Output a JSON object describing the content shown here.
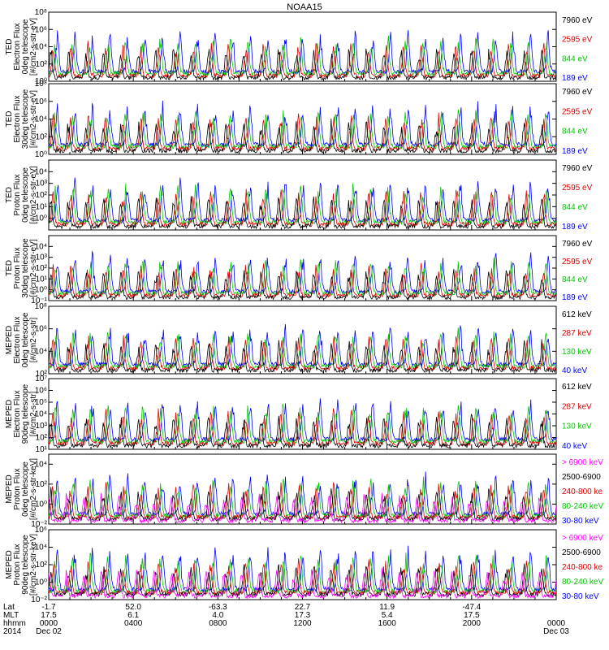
{
  "title": "NOAA15",
  "chart_data": [
    {
      "type": "line",
      "instrument": "TED",
      "ylabel": [
        "TED",
        "Electron Flux",
        "0deg telescope",
        "[#/cm2-s-str-eV]"
      ],
      "ytick_exponents": [
        0,
        2,
        4,
        6,
        8
      ],
      "ytick_labels": [
        "10⁰",
        "10²",
        "10⁴",
        "10⁶",
        "10⁸"
      ],
      "ylim": [
        1,
        100000000
      ],
      "yscale": "log",
      "series": [
        {
          "name": "7960 eV",
          "color": "#000000"
        },
        {
          "name": "2595 eV",
          "color": "#e00000"
        },
        {
          "name": "844 eV",
          "color": "#00c800"
        },
        {
          "name": "189 eV",
          "color": "#0000ff"
        }
      ]
    },
    {
      "type": "line",
      "instrument": "TED",
      "ylabel": [
        "TED",
        "Electron Flux",
        "30deg telescope",
        "[#/cm2-s-str-eV]"
      ],
      "ytick_exponents": [
        0,
        2,
        4,
        6,
        8
      ],
      "ytick_labels": [
        "10⁰",
        "10²",
        "10⁴",
        "10⁶",
        "10⁸"
      ],
      "ylim": [
        1,
        100000000
      ],
      "yscale": "log",
      "series": [
        {
          "name": "7960 eV",
          "color": "#000000"
        },
        {
          "name": "2595 eV",
          "color": "#e00000"
        },
        {
          "name": "844 eV",
          "color": "#00c800"
        },
        {
          "name": "189 eV",
          "color": "#0000ff"
        }
      ]
    },
    {
      "type": "line",
      "instrument": "TED",
      "ylabel": [
        "TED",
        "Proton Flux",
        "0deg telescope",
        "[#/cm2-s-str-eV]"
      ],
      "ytick_exponents": [
        0,
        1,
        2,
        3,
        4
      ],
      "ytick_labels": [
        "10⁰",
        "10¹",
        "10²",
        "10³",
        "10⁴"
      ],
      "ylim": [
        0.1,
        100000
      ],
      "yscale": "log",
      "series": [
        {
          "name": "7960 eV",
          "color": "#000000"
        },
        {
          "name": "2595 eV",
          "color": "#e00000"
        },
        {
          "name": "844 eV",
          "color": "#00c800"
        },
        {
          "name": "189 eV",
          "color": "#0000ff"
        }
      ]
    },
    {
      "type": "line",
      "instrument": "TED",
      "ylabel": [
        "TED",
        "Proton Flux",
        "30deg telescope",
        "[#/cm2-s-str-eV]"
      ],
      "ytick_exponents": [
        -1,
        0,
        1,
        2,
        3,
        4
      ],
      "ytick_labels": [
        "10⁻¹",
        "10⁰",
        "10¹",
        "10²",
        "10³",
        "10⁴"
      ],
      "ylim": [
        0.1,
        100000
      ],
      "yscale": "log",
      "series": [
        {
          "name": "7960 eV",
          "color": "#000000"
        },
        {
          "name": "2595 eV",
          "color": "#e00000"
        },
        {
          "name": "844 eV",
          "color": "#00c800"
        },
        {
          "name": "189 eV",
          "color": "#0000ff"
        }
      ]
    },
    {
      "type": "line",
      "instrument": "MEPED",
      "ylabel": [
        "MEPED",
        "Electron Flux",
        "0deg telescope",
        "[#/cm2-s-str]"
      ],
      "ytick_exponents": [
        2,
        4,
        6,
        8
      ],
      "ytick_labels": [
        "10²",
        "10⁴",
        "10⁶",
        "10⁸"
      ],
      "ylim": [
        100,
        100000000
      ],
      "yscale": "log",
      "series": [
        {
          "name": "612 keV",
          "color": "#000000"
        },
        {
          "name": "287 keV",
          "color": "#e00000"
        },
        {
          "name": "130 keV",
          "color": "#00c800"
        },
        {
          "name": "40 keV",
          "color": "#0000ff"
        }
      ]
    },
    {
      "type": "line",
      "instrument": "MEPED",
      "ylabel": [
        "MEPED",
        "Electron Flux",
        "90deg telescope",
        "[#/cm2-s-str]"
      ],
      "ytick_exponents": [
        1,
        2,
        3,
        4,
        5,
        6,
        7
      ],
      "ytick_labels": [
        "10¹",
        "10²",
        "10³",
        "10⁴",
        "10⁵",
        "10⁶",
        "10⁷"
      ],
      "ylim": [
        10,
        10000000
      ],
      "yscale": "log",
      "series": [
        {
          "name": "612 keV",
          "color": "#000000"
        },
        {
          "name": "287 keV",
          "color": "#e00000"
        },
        {
          "name": "130 keV",
          "color": "#00c800"
        },
        {
          "name": "40 keV",
          "color": "#0000ff"
        }
      ]
    },
    {
      "type": "line",
      "instrument": "MEPED",
      "ylabel": [
        "MEPED",
        "Proton Flux",
        "0deg telescope",
        "[#/cm2-s-str-keV]"
      ],
      "ytick_exponents": [
        -2,
        0,
        2,
        4
      ],
      "ytick_labels": [
        "10⁻²",
        "10⁰",
        "10²",
        "10⁴"
      ],
      "ylim": [
        0.01,
        100000
      ],
      "yscale": "log",
      "series": [
        {
          "name": "> 6900 keV",
          "color": "#ff00ff"
        },
        {
          "name": "2500-6900",
          "color": "#000000"
        },
        {
          "name": "240-800 ke",
          "color": "#e00000"
        },
        {
          "name": "80-240 keV",
          "color": "#00c800"
        },
        {
          "name": "30-80 keV",
          "color": "#0000ff"
        }
      ]
    },
    {
      "type": "line",
      "instrument": "MEPED",
      "ylabel": [
        "MEPED",
        "Proton Flux",
        "90deg telescope",
        "[#/cm2-s-str-keV]"
      ],
      "ytick_exponents": [
        -2,
        0,
        2,
        4,
        6
      ],
      "ytick_labels": [
        "10⁻²",
        "10⁰",
        "10²",
        "10⁴",
        "10⁶"
      ],
      "ylim": [
        0.01,
        1000000
      ],
      "yscale": "log",
      "series": [
        {
          "name": "> 6900 keV",
          "color": "#ff00ff"
        },
        {
          "name": "2500-6900",
          "color": "#000000"
        },
        {
          "name": "240-800 ke",
          "color": "#e00000"
        },
        {
          "name": "80-240 keV",
          "color": "#00c800"
        },
        {
          "name": "30-80 keV",
          "color": "#0000ff"
        }
      ]
    }
  ],
  "x_axis": {
    "row_labels": [
      "Lat",
      "MLT",
      "hhmm",
      "2014"
    ],
    "ticks": [
      {
        "lat": "-1.7",
        "mlt": "17.5",
        "hhmm": "0000",
        "date": "Dec 02"
      },
      {
        "lat": "52.0",
        "mlt": "6.1",
        "hhmm": "0400",
        "date": ""
      },
      {
        "lat": "-63.3",
        "mlt": "4.0",
        "hhmm": "0800",
        "date": ""
      },
      {
        "lat": "22.7",
        "mlt": "17.3",
        "hhmm": "1200",
        "date": ""
      },
      {
        "lat": "11.9",
        "mlt": "5.4",
        "hhmm": "1600",
        "date": ""
      },
      {
        "lat": "-47.4",
        "mlt": "17.5",
        "hhmm": "2000",
        "date": ""
      },
      {
        "lat": "",
        "mlt": "",
        "hhmm": "0000",
        "date": "Dec 03"
      }
    ]
  }
}
